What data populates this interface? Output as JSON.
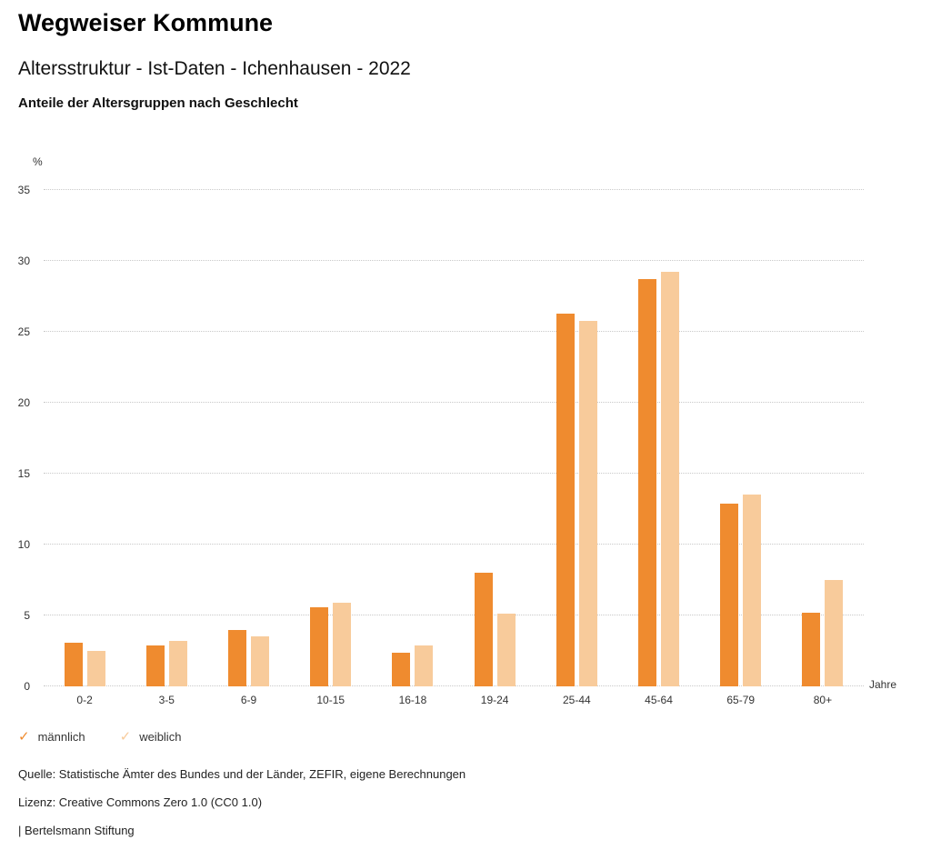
{
  "header": {
    "title": "Wegweiser Kommune",
    "subtitle": "Altersstruktur - Ist-Daten - Ichenhausen - 2022",
    "heading": "Anteile der Altersgruppen nach Geschlecht"
  },
  "chart_data": {
    "type": "bar",
    "title": "Anteile der Altersgruppen nach Geschlecht",
    "xlabel": "Jahre",
    "ylabel": "%",
    "ylim": [
      0,
      35
    ],
    "yticks": [
      0,
      5,
      10,
      15,
      20,
      25,
      30,
      35
    ],
    "grid": "dotted-horizontal",
    "legend_position": "bottom-left",
    "categories": [
      "0-2",
      "3-5",
      "6-9",
      "10-15",
      "16-18",
      "19-24",
      "25-44",
      "45-64",
      "65-79",
      "80+"
    ],
    "series": [
      {
        "name": "männlich",
        "color": "#ef8b2f",
        "values": [
          3.1,
          2.9,
          4.0,
          5.6,
          2.4,
          8.0,
          26.3,
          28.7,
          12.9,
          5.2
        ]
      },
      {
        "name": "weiblich",
        "color": "#f8cb9b",
        "values": [
          2.5,
          3.2,
          3.5,
          5.9,
          2.9,
          5.1,
          25.8,
          29.2,
          13.5,
          7.5
        ]
      }
    ]
  },
  "legend": {
    "check_glyph": "✓"
  },
  "footer": {
    "source": "Quelle: Statistische Ämter des Bundes und der Länder, ZEFIR, eigene Berechnungen",
    "license": "Lizenz: Creative Commons Zero 1.0 (CC0 1.0)",
    "brand": "| Bertelsmann Stiftung"
  }
}
